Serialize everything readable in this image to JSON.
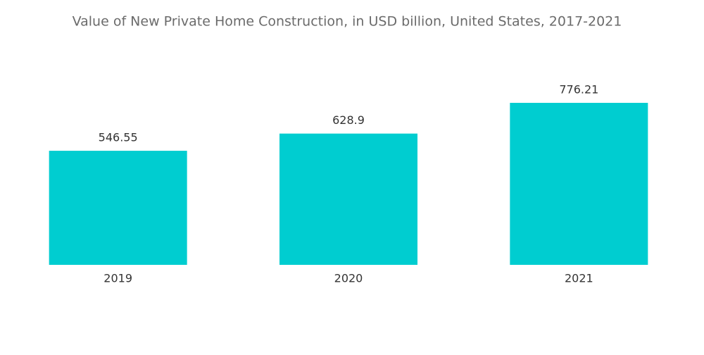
{
  "chart_data": {
    "type": "bar",
    "title": "Value of New Private Home Construction, in USD billion, United States, 2017-2021",
    "categories": [
      "2019",
      "2020",
      "2021"
    ],
    "values": [
      546.55,
      628.9,
      776.21
    ],
    "color": "#00cdd0"
  }
}
